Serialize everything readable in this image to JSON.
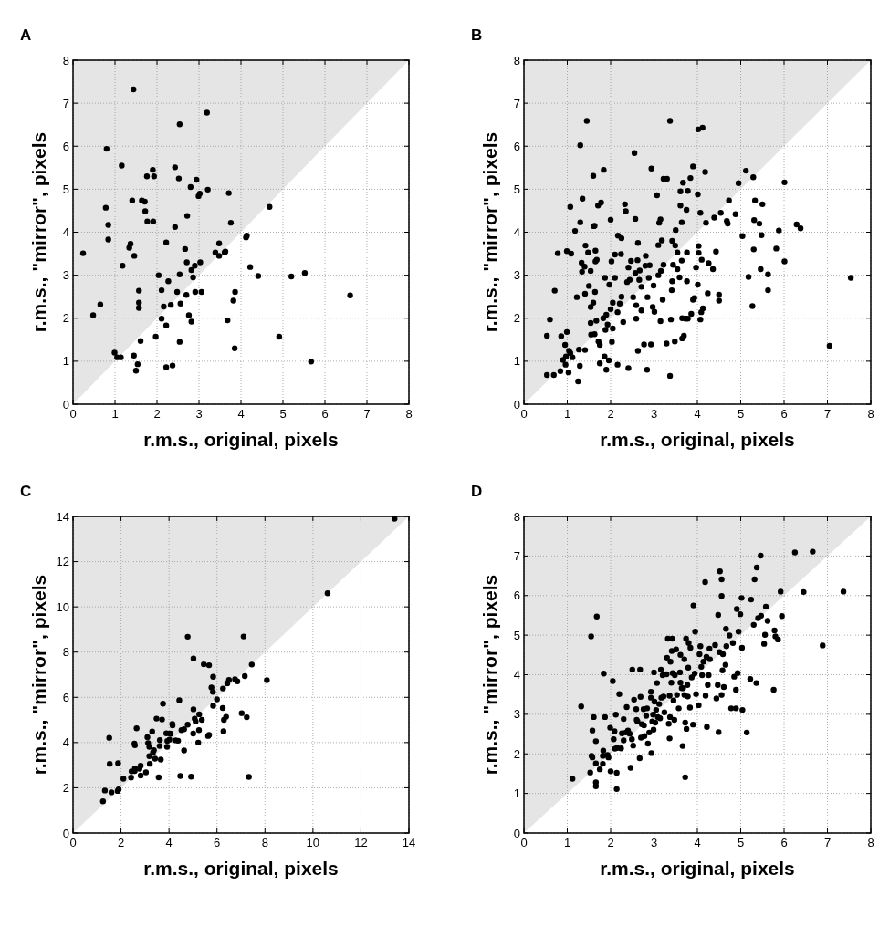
{
  "chart_data": [
    {
      "type": "scatter",
      "title": "A",
      "xlabel": "r.m.s., original, pixels",
      "ylabel": "r.m.s., \"mirror\", pixels",
      "xlim": [
        0,
        8
      ],
      "ylim": [
        0,
        8
      ],
      "xticks": [
        0,
        1,
        2,
        3,
        4,
        5,
        6,
        7,
        8
      ],
      "yticks": [
        0,
        1,
        2,
        3,
        4,
        5,
        6,
        7,
        8
      ],
      "grid": true,
      "series": [
        {
          "type": "area",
          "color": "#ffffff",
          "x": [
            0,
            8
          ],
          "values": [
            0,
            8
          ]
        },
        {
          "marker": "circle",
          "color": "#000000",
          "x": [
            0.24,
            0.48,
            0.65,
            0.78,
            0.8,
            0.84,
            0.84,
            0.99,
            1.05,
            1.14,
            1.16,
            1.18,
            1.34,
            1.37,
            1.41,
            1.44,
            1.46,
            1.45,
            1.54,
            1.5,
            1.57,
            1.57,
            1.57,
            1.61,
            1.64,
            1.71,
            1.72,
            1.76,
            1.77,
            1.9,
            1.91,
            1.93,
            1.97,
            2.04,
            2.11,
            2.11,
            2.16,
            2.22,
            2.22,
            2.22,
            2.27,
            2.33,
            2.37,
            2.43,
            2.43,
            2.48,
            2.52,
            2.54,
            2.54,
            2.54,
            2.56,
            2.67,
            2.7,
            2.71,
            2.72,
            2.76,
            2.8,
            2.82,
            2.82,
            2.86,
            2.9,
            2.91,
            2.94,
            2.99,
            3.02,
            3.03,
            3.06,
            3.19,
            3.21,
            3.39,
            3.48,
            3.48,
            3.61,
            3.63,
            3.68,
            3.71,
            3.76,
            3.82,
            3.85,
            3.86,
            4.12,
            4.14,
            4.22,
            4.41,
            4.68,
            4.91,
            5.2,
            5.52,
            5.67,
            6.6
          ],
          "values": [
            3.51,
            2.07,
            2.32,
            4.57,
            5.94,
            4.17,
            3.83,
            1.2,
            1.09,
            1.09,
            5.55,
            3.22,
            3.64,
            3.73,
            4.74,
            7.32,
            3.45,
            1.13,
            0.93,
            0.78,
            2.64,
            2.36,
            2.24,
            1.47,
            4.74,
            4.71,
            4.49,
            5.3,
            4.25,
            5.45,
            4.25,
            5.3,
            1.57,
            3.0,
            2.65,
            1.99,
            2.27,
            3.76,
            1.83,
            0.86,
            2.86,
            2.31,
            0.9,
            5.51,
            4.12,
            2.61,
            5.25,
            6.51,
            3.02,
            1.45,
            2.34,
            3.61,
            2.54,
            3.3,
            4.38,
            2.07,
            5.05,
            3.12,
            1.92,
            2.95,
            3.22,
            2.61,
            5.22,
            4.84,
            4.9,
            3.3,
            2.61,
            6.78,
            4.99,
            3.53,
            3.74,
            3.45,
            3.53,
            3.55,
            1.95,
            4.91,
            4.22,
            2.41,
            1.3,
            2.61,
            3.88,
            3.92,
            3.19,
            2.98,
            4.59,
            1.57,
            2.97,
            3.05,
            0.99,
            2.53
          ]
        }
      ]
    },
    {
      "type": "scatter",
      "title": "B",
      "xlabel": "r.m.s., original, pixels",
      "ylabel": "r.m.s., \"mirror\", pixels",
      "xlim": [
        0,
        8
      ],
      "ylim": [
        0,
        8
      ],
      "xticks": [
        0,
        1,
        2,
        3,
        4,
        5,
        6,
        7,
        8
      ],
      "yticks": [
        0,
        1,
        2,
        3,
        4,
        5,
        6,
        7,
        8
      ],
      "grid": true,
      "series": [
        {
          "type": "area",
          "color": "#ffffff",
          "x": [
            0,
            8
          ],
          "values": [
            0,
            8
          ]
        },
        {
          "marker": "circle",
          "color": "#000000",
          "x": [
            0.53,
            0.69,
            0.53,
            0.6,
            0.71,
            0.78,
            0.84,
            0.86,
            0.95,
            0.9,
            0.97,
            0.99,
            0.96,
            1.03,
            1.04,
            1.07,
            1.12,
            0.99,
            1.09,
            1.07,
            1.18,
            1.22,
            1.25,
            1.27,
            1.29,
            1.3,
            1.3,
            1.35,
            1.33,
            1.34,
            1.41,
            1.45,
            1.4,
            1.41,
            1.42,
            1.48,
            1.5,
            1.54,
            1.54,
            1.55,
            1.54,
            1.6,
            1.6,
            1.61,
            1.63,
            1.65,
            1.65,
            1.68,
            1.63,
            1.64,
            1.67,
            1.72,
            1.75,
            1.75,
            1.71,
            1.78,
            1.84,
            1.83,
            1.86,
            1.9,
            1.87,
            1.88,
            1.9,
            1.93,
            1.96,
            1.97,
            2.0,
            2.0,
            2.02,
            2.03,
            2.05,
            2.05,
            2.1,
            2.1,
            2.16,
            2.16,
            2.17,
            2.21,
            2.24,
            2.25,
            2.25,
            2.29,
            2.33,
            2.35,
            2.38,
            2.41,
            2.41,
            2.44,
            2.47,
            2.52,
            2.55,
            2.57,
            2.57,
            2.59,
            2.59,
            2.62,
            2.63,
            2.66,
            2.67,
            2.71,
            2.71,
            2.63,
            2.77,
            2.8,
            2.81,
            2.84,
            2.85,
            2.88,
            2.9,
            2.94,
            2.93,
            2.97,
            2.99,
            3.01,
            3.07,
            3.1,
            3.1,
            3.12,
            3.15,
            3.15,
            3.16,
            3.18,
            3.2,
            3.22,
            3.3,
            3.22,
            3.29,
            3.37,
            3.37,
            3.39,
            3.41,
            3.42,
            3.42,
            3.44,
            3.48,
            3.49,
            3.5,
            3.54,
            3.54,
            3.59,
            3.61,
            3.61,
            3.64,
            3.64,
            3.65,
            3.65,
            3.67,
            3.69,
            3.73,
            3.75,
            3.76,
            3.76,
            3.78,
            3.78,
            3.84,
            3.86,
            3.9,
            3.9,
            3.93,
            3.97,
            4.01,
            4.01,
            4.02,
            4.12,
            4.03,
            4.03,
            4.07,
            4.07,
            4.09,
            4.1,
            4.13,
            4.18,
            4.2,
            4.24,
            4.26,
            4.36,
            4.39,
            4.43,
            4.5,
            4.5,
            4.54,
            4.68,
            4.7,
            4.73,
            4.88,
            4.95,
            5.04,
            5.12,
            5.18,
            5.27,
            5.29,
            5.3,
            5.31,
            5.33,
            5.43,
            5.46,
            5.48,
            5.5,
            5.63,
            5.63,
            5.82,
            5.88,
            6.01,
            6.01,
            6.29,
            6.38,
            7.05,
            7.54
          ],
          "values": [
            0.68,
            0.68,
            1.59,
            1.97,
            2.64,
            3.51,
            0.77,
            1.58,
            1.38,
            1.03,
            1.11,
            1.68,
            0.92,
            0.74,
            1.24,
            1.19,
            1.09,
            3.56,
            3.5,
            4.59,
            4.03,
            2.49,
            0.53,
            1.27,
            0.89,
            6.02,
            4.23,
            4.78,
            3.29,
            3.08,
            1.26,
            6.59,
            3.2,
            2.57,
            3.69,
            3.53,
            2.75,
            3.1,
            2.26,
            1.62,
            1.89,
            2.36,
            5.31,
            4.14,
            4.15,
            3.57,
            3.32,
            3.36,
            1.63,
            2.61,
            1.94,
            1.46,
            1.38,
            0.95,
            4.62,
            4.69,
            5.45,
            2.0,
            1.11,
            0.8,
            2.94,
            1.73,
            2.08,
            1.85,
            1.02,
            2.78,
            4.29,
            2.21,
            3.32,
            1.45,
            2.36,
            1.76,
            3.48,
            2.94,
            0.92,
            2.14,
            3.92,
            2.34,
            3.49,
            3.86,
            2.5,
            1.91,
            4.65,
            4.49,
            2.84,
            0.84,
            3.18,
            2.89,
            3.33,
            2.49,
            5.84,
            4.31,
            3.05,
            2.3,
            1.99,
            3.35,
            3.75,
            2.89,
            3.11,
            2.18,
            2.73,
            1.24,
            1.39,
            3.22,
            3.45,
            0.8,
            2.49,
            2.94,
            3.23,
            5.48,
            1.39,
            2.26,
            2.76,
            2.15,
            4.86,
            3.7,
            3.0,
            4.22,
            4.3,
            1.93,
            3.1,
            3.81,
            2.43,
            5.24,
            5.24,
            3.24,
            1.41,
            6.59,
            0.66,
            1.97,
            2.65,
            3.8,
            2.86,
            3.24,
            1.46,
            3.69,
            4.05,
            3.53,
            3.14,
            2.95,
            4.95,
            4.62,
            4.23,
            3.34,
            2.0,
            1.53,
            5.15,
            1.59,
            1.99,
            4.52,
            3.53,
            2.86,
            1.99,
            4.96,
            5.26,
            2.1,
            5.53,
            2.43,
            2.47,
            3.18,
            4.88,
            2.78,
            6.39,
            6.43,
            3.68,
            3.52,
            4.45,
            1.97,
            2.14,
            3.36,
            2.23,
            5.4,
            4.22,
            2.58,
            3.28,
            3.14,
            4.34,
            3.55,
            2.55,
            2.41,
            4.45,
            4.26,
            4.2,
            4.74,
            4.42,
            5.14,
            3.91,
            5.43,
            2.96,
            2.28,
            5.28,
            3.6,
            4.28,
            4.74,
            4.2,
            3.14,
            3.93,
            4.65,
            3.02,
            2.65,
            3.62,
            4.04,
            3.32,
            5.16,
            4.18,
            4.09,
            1.36,
            2.94
          ]
        }
      ]
    },
    {
      "type": "scatter",
      "title": "C",
      "xlabel": "r.m.s., original, pixels",
      "ylabel": "r.m.s., \"mirror\", pixels",
      "xlim": [
        0,
        14
      ],
      "ylim": [
        0,
        14
      ],
      "xticks": [
        0,
        2,
        4,
        6,
        8,
        10,
        12,
        14
      ],
      "yticks": [
        0,
        2,
        4,
        6,
        8,
        10,
        12,
        14
      ],
      "grid": true,
      "series": [
        {
          "type": "area",
          "color": "#ffffff",
          "x": [
            0,
            14
          ],
          "values": [
            0,
            14
          ]
        },
        {
          "marker": "circle",
          "color": "#000000",
          "x": [
            1.25,
            1.33,
            1.6,
            1.86,
            1.9,
            1.51,
            1.53,
            1.88,
            2.1,
            2.42,
            2.44,
            2.57,
            2.58,
            2.56,
            2.58,
            2.65,
            2.77,
            2.82,
            2.82,
            3.04,
            3.1,
            3.13,
            3.18,
            3.18,
            3.2,
            3.3,
            3.33,
            3.37,
            3.42,
            3.48,
            3.57,
            3.62,
            3.61,
            3.66,
            3.71,
            3.75,
            3.89,
            3.92,
            3.93,
            4.02,
            4.04,
            4.07,
            4.14,
            4.15,
            4.28,
            4.38,
            4.43,
            4.47,
            4.52,
            4.63,
            4.63,
            4.78,
            4.78,
            4.92,
            5.01,
            5.02,
            5.02,
            5.07,
            5.11,
            5.22,
            5.25,
            5.26,
            5.37,
            5.45,
            5.63,
            5.67,
            5.67,
            5.77,
            5.83,
            5.84,
            5.84,
            6.0,
            6.24,
            6.25,
            6.27,
            6.29,
            6.38,
            6.43,
            6.5,
            6.75,
            6.85,
            7.03,
            7.11,
            7.16,
            7.24,
            7.33,
            7.45,
            8.08,
            10.61,
            13.4
          ],
          "values": [
            1.4,
            1.88,
            1.8,
            1.86,
            1.93,
            4.21,
            3.06,
            3.09,
            2.4,
            2.45,
            2.73,
            2.74,
            2.86,
            3.96,
            3.88,
            4.63,
            2.84,
            2.54,
            2.98,
            2.68,
            4.24,
            3.98,
            3.81,
            3.4,
            3.06,
            4.49,
            3.55,
            3.66,
            3.29,
            5.06,
            2.46,
            4.11,
            3.85,
            3.25,
            5.02,
            5.72,
            4.41,
            3.81,
            4.07,
            4.13,
            4.4,
            4.39,
            4.82,
            4.76,
            4.1,
            4.08,
            5.87,
            2.52,
            4.55,
            3.65,
            4.59,
            8.68,
            4.79,
            2.49,
            4.4,
            5.47,
            7.72,
            5.06,
            4.93,
            4.0,
            4.55,
            5.25,
            5.0,
            7.46,
            4.29,
            4.34,
            7.42,
            6.44,
            6.24,
            5.63,
            6.91,
            5.91,
            5.53,
            6.39,
            4.5,
            5.0,
            5.14,
            6.62,
            6.77,
            6.8,
            6.71,
            5.3,
            8.69,
            6.94,
            5.12,
            2.48,
            7.45,
            6.76,
            10.6,
            13.9
          ]
        }
      ]
    },
    {
      "type": "scatter",
      "title": "D",
      "xlabel": "r.m.s., original, pixels",
      "ylabel": "r.m.s., \"mirror\", pixels",
      "xlim": [
        0,
        8
      ],
      "ylim": [
        0,
        8
      ],
      "xticks": [
        0,
        1,
        2,
        3,
        4,
        5,
        6,
        7,
        8
      ],
      "yticks": [
        0,
        1,
        2,
        3,
        4,
        5,
        6,
        7,
        8
      ],
      "grid": true,
      "series": [
        {
          "type": "area",
          "color": "#ffffff",
          "x": [
            0,
            8
          ],
          "values": [
            0,
            8
          ]
        },
        {
          "marker": "circle",
          "color": "#000000",
          "x": [
            1.12,
            1.32,
            1.53,
            1.55,
            1.68,
            1.58,
            1.61,
            1.66,
            1.56,
            1.58,
            1.66,
            1.66,
            1.66,
            1.75,
            1.82,
            1.83,
            1.82,
            1.84,
            1.87,
            1.93,
            1.95,
            1.99,
            2.0,
            2.05,
            2.07,
            2.09,
            2.1,
            2.12,
            2.14,
            2.14,
            2.15,
            2.2,
            2.24,
            2.26,
            2.3,
            2.3,
            2.35,
            2.37,
            2.4,
            2.44,
            2.46,
            2.5,
            2.49,
            2.52,
            2.54,
            2.59,
            2.6,
            2.62,
            2.67,
            2.68,
            2.69,
            2.7,
            2.72,
            2.76,
            2.77,
            2.78,
            2.82,
            2.84,
            2.86,
            2.89,
            2.93,
            2.93,
            2.94,
            2.96,
            2.98,
            2.99,
            3.0,
            3.01,
            3.03,
            3.05,
            3.07,
            3.09,
            3.12,
            3.14,
            3.16,
            3.17,
            3.2,
            3.22,
            3.24,
            3.29,
            3.3,
            3.32,
            3.34,
            3.36,
            3.36,
            3.37,
            3.38,
            3.4,
            3.41,
            3.42,
            3.43,
            3.45,
            3.47,
            3.48,
            3.51,
            3.53,
            3.57,
            3.6,
            3.61,
            3.61,
            3.64,
            3.66,
            3.67,
            3.7,
            3.7,
            3.72,
            3.72,
            3.74,
            3.75,
            3.77,
            3.78,
            3.79,
            3.8,
            3.83,
            3.84,
            3.87,
            3.91,
            3.9,
            3.94,
            3.95,
            3.97,
            4.03,
            4.05,
            4.07,
            4.09,
            4.11,
            4.14,
            4.18,
            4.19,
            4.21,
            4.22,
            4.24,
            4.26,
            4.28,
            4.29,
            4.41,
            4.44,
            4.47,
            4.48,
            4.49,
            4.51,
            4.52,
            4.56,
            4.56,
            4.56,
            4.58,
            4.59,
            4.61,
            4.65,
            4.66,
            4.67,
            4.74,
            4.78,
            4.82,
            4.85,
            4.89,
            4.89,
            4.91,
            4.93,
            4.95,
            4.99,
            5.02,
            5.03,
            5.04,
            5.14,
            5.22,
            5.24,
            5.3,
            5.32,
            5.36,
            5.37,
            5.4,
            5.46,
            5.47,
            5.54,
            5.56,
            5.58,
            5.62,
            5.76,
            5.78,
            5.8,
            5.86,
            5.92,
            5.95,
            6.25,
            6.45,
            6.66,
            6.89,
            7.37
          ],
          "values": [
            1.37,
            3.2,
            1.53,
            4.97,
            5.47,
            2.59,
            2.93,
            2.32,
            1.95,
            1.91,
            1.76,
            1.28,
            1.18,
            1.61,
            1.75,
            2.08,
            1.95,
            4.03,
            2.93,
            1.97,
            1.91,
            2.66,
            1.56,
            3.84,
            2.37,
            2.57,
            2.13,
            2.99,
            1.11,
            1.52,
            2.15,
            3.51,
            2.14,
            2.52,
            2.88,
            2.34,
            2.54,
            3.18,
            2.59,
            2.51,
            1.65,
            4.13,
            2.37,
            2.21,
            3.37,
            3.13,
            2.86,
            2.82,
            1.89,
            4.13,
            3.44,
            2.41,
            2.75,
            3.13,
            2.72,
            2.45,
            2.96,
            3.15,
            2.26,
            2.54,
            3.57,
            3.42,
            2.02,
            2.82,
            2.99,
            2.61,
            4.06,
            3.32,
            2.79,
            3.11,
            3.79,
            2.93,
            3.26,
            2.9,
            4.13,
            3.42,
            3.99,
            3.45,
            3.05,
            4.01,
            4.43,
            4.91,
            2.76,
            2.39,
            3.47,
            2.93,
            4.33,
            3.8,
            4.6,
            4.91,
            4.04,
            3.35,
            2.86,
            3.99,
            4.64,
            3.49,
            3.15,
            4.06,
            4.5,
            3.8,
            3.66,
            2.2,
            3.66,
            3.49,
            4.39,
            1.41,
            2.79,
            4.91,
            2.63,
            3.74,
            3.45,
            4.18,
            4.8,
            3.17,
            4.68,
            3.93,
            5.75,
            2.74,
            4.03,
            5.09,
            3.51,
            3.23,
            4.52,
            4.72,
            4.2,
            3.99,
            4.33,
            6.34,
            3.47,
            4.45,
            2.68,
            3.74,
            3.99,
            4.66,
            4.39,
            4.75,
            3.4,
            3.74,
            5.51,
            2.55,
            4.57,
            6.61,
            5.99,
            6.41,
            3.49,
            4.11,
            4.52,
            3.69,
            4.25,
            5.16,
            4.72,
            4.99,
            3.15,
            4.8,
            3.95,
            3.15,
            3.62,
            5.66,
            4.04,
            5.09,
            5.53,
            5.94,
            4.68,
            3.11,
            2.54,
            3.89,
            5.9,
            5.26,
            6.41,
            3.79,
            6.71,
            5.43,
            7.01,
            5.49,
            4.78,
            5.01,
            5.72,
            5.36,
            3.62,
            5.12,
            4.97,
            4.89,
            6.1,
            5.48,
            7.09,
            6.09,
            7.11,
            4.74,
            6.1
          ]
        }
      ]
    }
  ]
}
